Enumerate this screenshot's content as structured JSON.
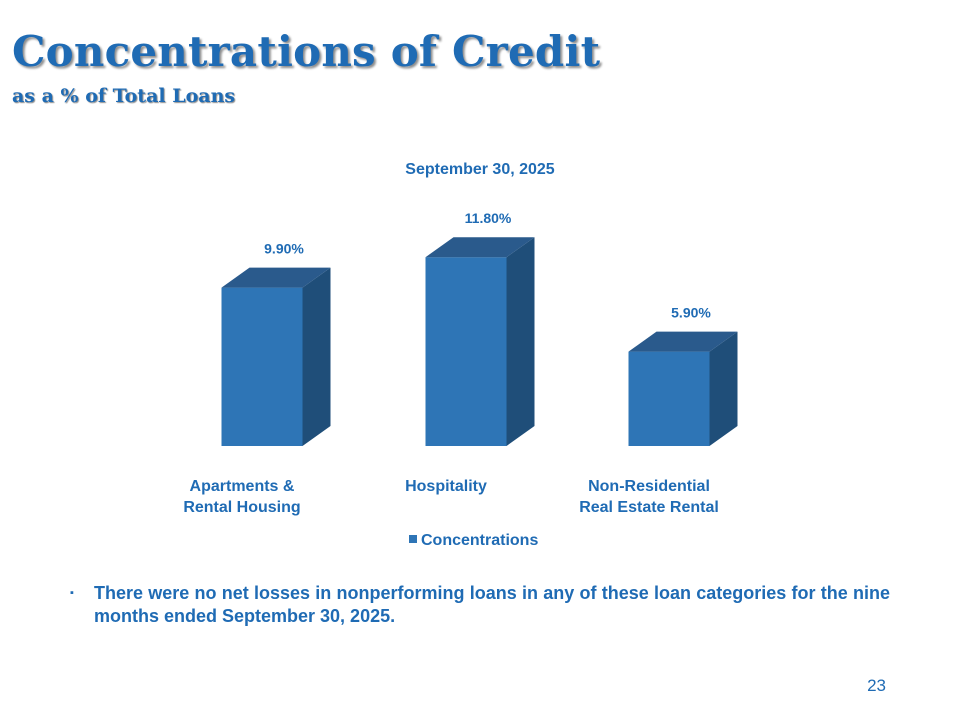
{
  "slide": {
    "title": "Concentrations of Credit",
    "subtitle": "as a % of Total Loans",
    "bullet_marker": "▪",
    "bullet_text": "There were no net losses in nonperforming loans in any of these loan categories for the nine months ended September 30, 2025.",
    "page_number": "23"
  },
  "colors": {
    "accent": "#1f6bb4",
    "bar_front": "#2e75b6",
    "bar_side": "#1f4e79",
    "bar_top": "#2a5a8c"
  },
  "chart_data": {
    "type": "bar",
    "title": "September 30, 2025",
    "categories": [
      [
        "Apartments &",
        "Rental Housing"
      ],
      [
        "Hospitality"
      ],
      [
        "Non-Residential",
        "Real Estate Rental"
      ]
    ],
    "series": [
      {
        "name": "Concentrations",
        "values": [
          9.9,
          11.8,
          5.9
        ],
        "labels": [
          "9.90%",
          "11.80%",
          "5.90%"
        ]
      }
    ],
    "ylim": [
      0,
      12.5
    ],
    "grid": false,
    "legend": "bottom",
    "three_d": true
  }
}
